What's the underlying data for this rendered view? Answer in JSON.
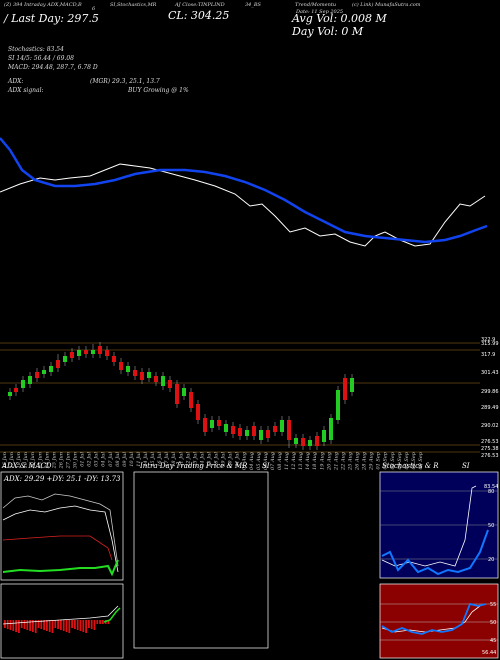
{
  "header": {
    "line1_left": "(Z) 394 Intraday ADX,MACD,B",
    "line1_mid": "6",
    "stoch_mr": "SI,Stochastics,MR",
    "aj_label": "AJ Close:TINPLIND",
    "bse": "34_BS",
    "trend": "Trend/Momentu",
    "munafa": "(c) Link) MunafaSutra.com",
    "date": "Date: 11 Sep 2025",
    "close": "CL: 304.25",
    "avg_vol": "Avg Vol: 0.008 M",
    "day_vol": "Day Vol: 0  M",
    "last_close": "/ Last Day: 297.5"
  },
  "indicators": {
    "stochastics": "Stochastics: 83.54",
    "si": "SI 14/5: 56.44  / 69.08",
    "macd": "MACD: 294.48, 287.7, 6.78  D",
    "adx": "ADX:",
    "adx_val": "(MGR) 29.3,  25.1,  13.7",
    "adx_signal": "ADX  signal:",
    "buy_signal": "BUY Growing @ 1%"
  },
  "price_axis": [
    "322.9",
    "315.99",
    "317.9",
    "301.43",
    "299.86",
    "289.49",
    "290.02",
    "276.53",
    "275.38",
    "276.53"
  ],
  "date_axis": [
    "16 Jun",
    "17 Jun",
    "18 Jun",
    "19 Jun",
    "20 Jun",
    "23 Jun",
    "24 Jun",
    "25 Jun",
    "26 Jun",
    "27 Jun",
    "30 Jun",
    "01 Jul",
    "02 Jul",
    "03 Jul",
    "04 Jul",
    "07 Jul",
    "08 Jul",
    "09 Jul",
    "10 Jul",
    "11 Jul",
    "14 Jul",
    "15 Jul",
    "16 Jul",
    "17 Jul",
    "18 Jul",
    "21 Jul",
    "22 Jul",
    "23 Jul",
    "24 Jul",
    "25 Jul",
    "28 Jul",
    "29 Jul",
    "30 Jul",
    "31 Jul",
    "01 Aug",
    "04 Aug",
    "05 Aug",
    "06 Aug",
    "07 Aug",
    "08 Aug",
    "11 Aug",
    "12 Aug",
    "13 Aug",
    "14 Aug",
    "18 Aug",
    "19 Aug",
    "20 Aug",
    "21 Aug",
    "22 Aug",
    "25 Aug",
    "26 Aug",
    "28 Aug",
    "29 Aug",
    "01 Sep",
    "02 Sep",
    "03 Sep",
    "04 Sep",
    "05 Sep",
    "08 Sep",
    "09 Sep"
  ],
  "panels": {
    "adx_title": "ADX  & MACD",
    "adx_readout": "ADX: 29.29  +DY: 25.1  -DY: 13.73",
    "intra_title": "Intra  Day Trading Price  & MR",
    "intra_si": "SI",
    "stoch_title": "Stochastics & R",
    "stoch_si": "SI",
    "stoch_levels": [
      "80",
      "50",
      "20"
    ],
    "si_levels": [
      "55",
      "50",
      "45"
    ],
    "stoch_end": "83.54",
    "si_end": "56.44"
  },
  "colors": {
    "up": "#22cc22",
    "down": "#dd1111",
    "ma": "#1144ee",
    "price_line": "#ffffff",
    "hline": "#a07020",
    "red_panel": "#990000"
  }
}
